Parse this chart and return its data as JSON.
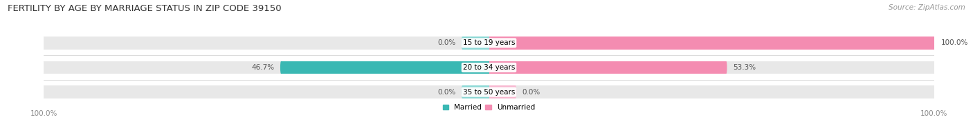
{
  "title": "FERTILITY BY AGE BY MARRIAGE STATUS IN ZIP CODE 39150",
  "source": "Source: ZipAtlas.com",
  "categories": [
    "15 to 19 years",
    "20 to 34 years",
    "35 to 50 years"
  ],
  "married": [
    0.0,
    46.7,
    0.0
  ],
  "unmarried": [
    100.0,
    53.3,
    0.0
  ],
  "married_color": "#3ab8b3",
  "unmarried_color": "#f48cb1",
  "unmarried_small_color": "#f7b8d0",
  "married_small_color": "#8dd8d5",
  "bar_bg_color": "#e8e8e8",
  "bar_height": 0.52,
  "label_left_married": [
    "0.0%",
    "46.7%",
    "0.0%"
  ],
  "label_right_unmarried": [
    "100.0%",
    "53.3%",
    "0.0%"
  ],
  "xlim": 100,
  "title_fontsize": 9.5,
  "source_fontsize": 7.5,
  "label_fontsize": 7.5,
  "tick_fontsize": 7.5,
  "legend_fontsize": 7.5,
  "category_fontsize": 7.5,
  "small_bar_width": 6.0
}
